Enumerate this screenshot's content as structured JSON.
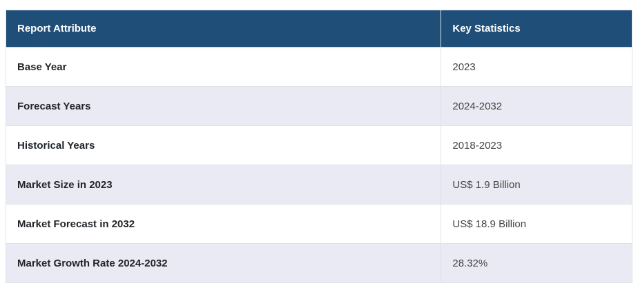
{
  "table": {
    "headers": {
      "attribute": "Report Attribute",
      "statistic": "Key Statistics"
    },
    "rows": [
      {
        "attribute": "Base Year",
        "value": "2023"
      },
      {
        "attribute": "Forecast Years",
        "value": "2024-2032"
      },
      {
        "attribute": "Historical Years",
        "value": "2018-2023"
      },
      {
        "attribute": "Market Size in 2023",
        "value": "US$ 1.9 Billion"
      },
      {
        "attribute": "Market Forecast in 2032",
        "value": "US$ 18.9 Billion"
      },
      {
        "attribute": "Market Growth Rate 2024-2032",
        "value": "28.32%"
      }
    ],
    "colors": {
      "header_bg": "#1f4e79",
      "header_text": "#ffffff",
      "row_bg": "#ffffff",
      "row_alt_bg": "#e9eaf3",
      "border": "#dee2e6",
      "attribute_text": "#212529",
      "value_text": "#444444"
    }
  }
}
